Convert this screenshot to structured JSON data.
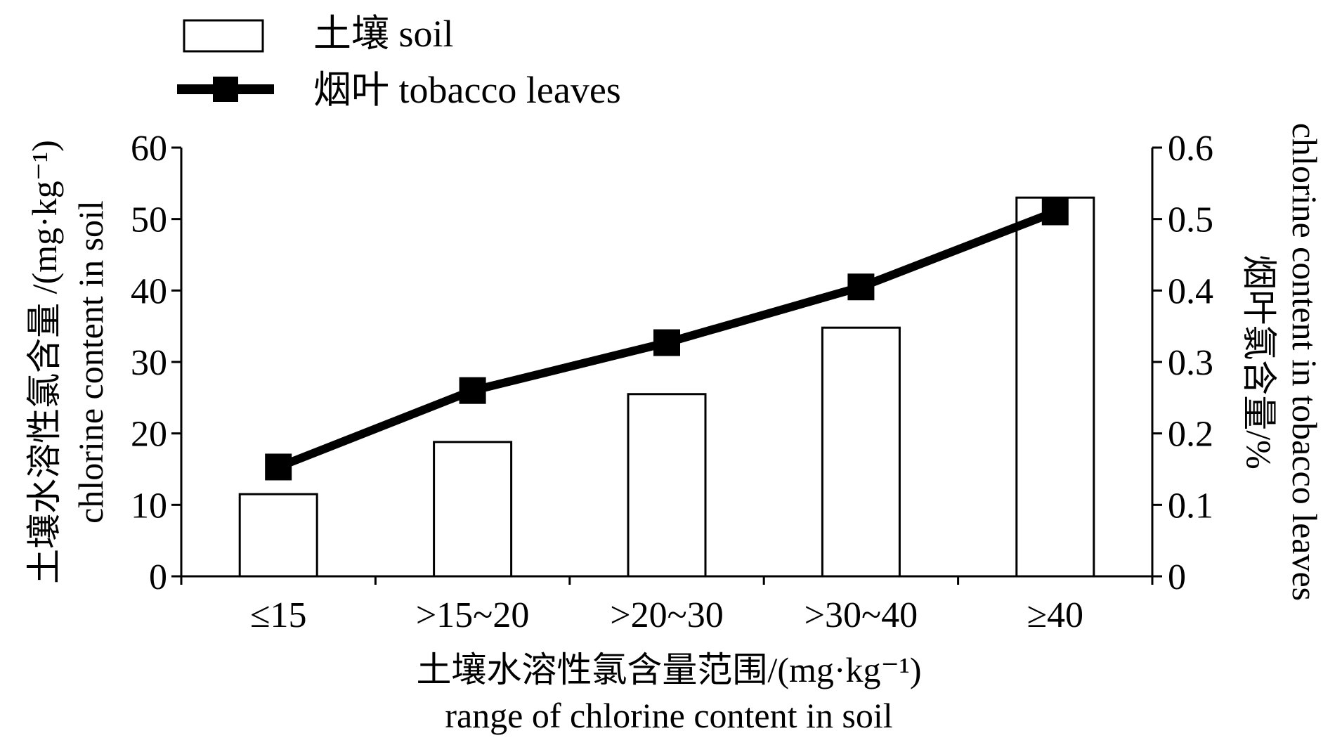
{
  "chart_data": {
    "type": "bar",
    "categories": [
      "≤15",
      ">15~20",
      ">20~30",
      ">30~40",
      "≥40"
    ],
    "series": [
      {
        "name": "土壤 soil",
        "type": "bar",
        "axis": "left",
        "values": [
          11.5,
          18.8,
          25.5,
          34.8,
          53
        ]
      },
      {
        "name": "烟叶 tobacco leaves",
        "type": "line",
        "axis": "right",
        "values": [
          0.153,
          0.26,
          0.327,
          0.405,
          0.51
        ]
      }
    ],
    "xlabel": [
      "土壤水溶性氯含量范围/(mg·kg⁻¹)",
      "range of chlorine content in soil"
    ],
    "ylabel": [
      "土壤水溶性氯含量 /(mg·kg⁻¹)",
      "chlorine content in soil"
    ],
    "y2label": [
      "烟叶氯含量/%",
      "chlorine content in tobacco leaves"
    ],
    "ylim": [
      0,
      60
    ],
    "y2lim": [
      0,
      0.6
    ],
    "yticks": [
      "0",
      "10",
      "20",
      "30",
      "40",
      "50",
      "60"
    ],
    "y2ticks": [
      "0",
      "0.1",
      "0.2",
      "0.3",
      "0.4",
      "0.5",
      "0.6"
    ],
    "yticks_values": [
      0,
      10,
      20,
      30,
      40,
      50,
      60
    ],
    "y2ticks_values": [
      0,
      0.1,
      0.2,
      0.3,
      0.4,
      0.5,
      0.6
    ],
    "legend": "top-left",
    "grid": false,
    "colors": {
      "bar_fill": "#ffffff",
      "stroke": "#000000",
      "line": "#000000"
    }
  }
}
